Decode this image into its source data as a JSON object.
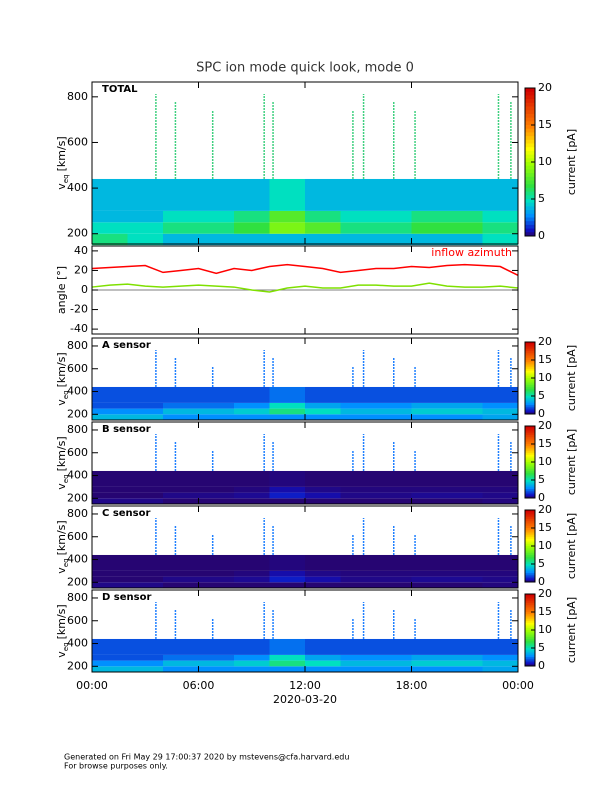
{
  "title": "SPC ion mode quick look, mode 0",
  "xlabel": "2020-03-20",
  "xlim": [
    0,
    24
  ],
  "xticks": [
    {
      "value": 0,
      "label": "00:00"
    },
    {
      "value": 6,
      "label": "06:00"
    },
    {
      "value": 12,
      "label": "12:00"
    },
    {
      "value": 18,
      "label": "18:00"
    },
    {
      "value": 24,
      "label": "00:00"
    }
  ],
  "footer": [
    "Generated on Fri May 29 17:00:37 2020 by mstevens@cfa.harvard.edu",
    "For browse purposes only."
  ],
  "chart_data": [
    {
      "type": "spectrogram",
      "label": "TOTAL",
      "ylabel": "v",
      "ylabel_sub": "eq",
      "ylabel_unit": "[km/s]",
      "ylim": [
        155,
        865
      ],
      "yticks": [
        200,
        400,
        600,
        800
      ],
      "clabel": "current [pA]",
      "clim": [
        0,
        20
      ],
      "cticks": [
        0,
        5,
        10,
        15,
        20
      ],
      "x": [
        0,
        2,
        4,
        6,
        8,
        10,
        12,
        14,
        16,
        18,
        20,
        22,
        24
      ],
      "bins": [
        150,
        200,
        250,
        300,
        440
      ],
      "values": [
        [
          6,
          5,
          4,
          4
        ],
        [
          5,
          5,
          4,
          4
        ],
        [
          4,
          6,
          5,
          4
        ],
        [
          4,
          6,
          5,
          4
        ],
        [
          4,
          7,
          6,
          4
        ],
        [
          4,
          9,
          8,
          5
        ],
        [
          4,
          8,
          6,
          4
        ],
        [
          4,
          6,
          5,
          4
        ],
        [
          4,
          6,
          5,
          4
        ],
        [
          4,
          7,
          6,
          4
        ],
        [
          4,
          7,
          6,
          4
        ],
        [
          5,
          6,
          5,
          4
        ]
      ],
      "spikes": [
        3.6,
        4.7,
        6.8,
        9.7,
        10.2,
        14.7,
        15.3,
        17.0,
        18.2,
        22.9,
        23.6
      ]
    },
    {
      "type": "line",
      "ylabel": "angle [°]",
      "ylim": [
        -45,
        45
      ],
      "yticks": [
        -40,
        -20,
        0,
        20,
        40
      ],
      "x": [
        0,
        1,
        2,
        3,
        4,
        5,
        6,
        7,
        8,
        9,
        10,
        11,
        12,
        13,
        14,
        15,
        16,
        17,
        18,
        19,
        20,
        21,
        22,
        23,
        24
      ],
      "series": [
        {
          "name": "inflow azimuth",
          "color": "#ff0000",
          "values": [
            22,
            23,
            24,
            25,
            18,
            20,
            22,
            17,
            22,
            20,
            24,
            26,
            24,
            22,
            18,
            20,
            22,
            22,
            24,
            23,
            25,
            26,
            25,
            24,
            15
          ]
        },
        {
          "color": "#7fe000",
          "values": [
            3,
            5,
            6,
            4,
            3,
            4,
            5,
            4,
            3,
            0,
            -2,
            2,
            4,
            2,
            2,
            5,
            5,
            4,
            4,
            7,
            4,
            3,
            3,
            4,
            2
          ]
        }
      ]
    },
    {
      "type": "spectrogram",
      "label": "A sensor",
      "ylabel": "v",
      "ylabel_sub": "eq",
      "ylabel_unit": "[km/s]",
      "ylim": [
        150,
        870
      ],
      "yticks": [
        200,
        400,
        600,
        800
      ],
      "clabel": "current [pA]",
      "clim": [
        0,
        20
      ],
      "cticks": [
        0,
        5,
        10,
        15,
        20
      ],
      "x": [
        0,
        2,
        4,
        6,
        8,
        10,
        12,
        14,
        16,
        18,
        20,
        22,
        24
      ],
      "bins": [
        150,
        200,
        250,
        300,
        440
      ],
      "values": [
        [
          4,
          3,
          2,
          2
        ],
        [
          4,
          3,
          2,
          2
        ],
        [
          3,
          4,
          2.5,
          2
        ],
        [
          3,
          4,
          2.5,
          2
        ],
        [
          3,
          4.5,
          3,
          2
        ],
        [
          3,
          6,
          5,
          2.5
        ],
        [
          3,
          5,
          3.5,
          2
        ],
        [
          3,
          4,
          3,
          2
        ],
        [
          3,
          4,
          3,
          2
        ],
        [
          3,
          4.5,
          3.5,
          2
        ],
        [
          3,
          4.5,
          3.5,
          2
        ],
        [
          3.5,
          4,
          3,
          2
        ]
      ],
      "spikes": [
        3.6,
        4.7,
        6.8,
        9.7,
        10.2,
        14.7,
        15.3,
        17.0,
        18.2,
        22.9,
        23.6
      ]
    },
    {
      "type": "spectrogram",
      "label": "B sensor",
      "ylabel": "v",
      "ylabel_sub": "eq",
      "ylabel_unit": "[km/s]",
      "ylim": [
        150,
        870
      ],
      "yticks": [
        200,
        400,
        600,
        800
      ],
      "clabel": "current [pA]",
      "clim": [
        0,
        20
      ],
      "cticks": [
        0,
        5,
        10,
        15,
        20
      ],
      "x": [
        0,
        2,
        4,
        6,
        8,
        10,
        12,
        14,
        16,
        18,
        20,
        22,
        24
      ],
      "bins": [
        150,
        200,
        250,
        300,
        440
      ],
      "values": [
        [
          0.5,
          0.3,
          0.3,
          0.3
        ],
        [
          0.5,
          0.3,
          0.3,
          0.3
        ],
        [
          0.3,
          0.5,
          0.3,
          0.3
        ],
        [
          0.3,
          0.5,
          0.3,
          0.3
        ],
        [
          0.3,
          0.6,
          0.4,
          0.3
        ],
        [
          0.3,
          1.2,
          0.8,
          0.4
        ],
        [
          0.3,
          0.8,
          0.5,
          0.3
        ],
        [
          0.3,
          0.5,
          0.4,
          0.3
        ],
        [
          0.3,
          0.5,
          0.4,
          0.3
        ],
        [
          0.3,
          0.6,
          0.4,
          0.3
        ],
        [
          0.3,
          0.6,
          0.4,
          0.3
        ],
        [
          0.4,
          0.5,
          0.4,
          0.3
        ]
      ],
      "spikes": [
        3.6,
        4.7,
        6.8,
        9.7,
        10.2,
        14.7,
        15.3,
        17.0,
        18.2,
        22.9,
        23.6
      ]
    },
    {
      "type": "spectrogram",
      "label": "C sensor",
      "ylabel": "v",
      "ylabel_sub": "eq",
      "ylabel_unit": "[km/s]",
      "ylim": [
        150,
        870
      ],
      "yticks": [
        200,
        400,
        600,
        800
      ],
      "clabel": "current [pA]",
      "clim": [
        0,
        20
      ],
      "cticks": [
        0,
        5,
        10,
        15,
        20
      ],
      "x": [
        0,
        2,
        4,
        6,
        8,
        10,
        12,
        14,
        16,
        18,
        20,
        22,
        24
      ],
      "bins": [
        150,
        200,
        250,
        300,
        440
      ],
      "values": [
        [
          0.5,
          0.3,
          0.3,
          0.3
        ],
        [
          0.5,
          0.3,
          0.3,
          0.3
        ],
        [
          0.3,
          0.5,
          0.3,
          0.3
        ],
        [
          0.3,
          0.5,
          0.3,
          0.3
        ],
        [
          0.3,
          0.6,
          0.4,
          0.3
        ],
        [
          0.3,
          1.2,
          0.8,
          0.4
        ],
        [
          0.3,
          0.8,
          0.5,
          0.3
        ],
        [
          0.3,
          0.5,
          0.4,
          0.3
        ],
        [
          0.3,
          0.5,
          0.4,
          0.3
        ],
        [
          0.3,
          0.6,
          0.4,
          0.3
        ],
        [
          0.3,
          0.6,
          0.4,
          0.3
        ],
        [
          0.4,
          0.5,
          0.4,
          0.3
        ]
      ],
      "spikes": [
        3.6,
        4.7,
        6.8,
        9.7,
        10.2,
        14.7,
        15.3,
        17.0,
        18.2,
        22.9,
        23.6
      ]
    },
    {
      "type": "spectrogram",
      "label": "D sensor",
      "ylabel": "v",
      "ylabel_sub": "eq",
      "ylabel_unit": "[km/s]",
      "ylim": [
        150,
        870
      ],
      "yticks": [
        200,
        400,
        600,
        800
      ],
      "clabel": "current [pA]",
      "clim": [
        0,
        20
      ],
      "cticks": [
        0,
        5,
        10,
        15,
        20
      ],
      "x": [
        0,
        2,
        4,
        6,
        8,
        10,
        12,
        14,
        16,
        18,
        20,
        22,
        24
      ],
      "bins": [
        150,
        200,
        250,
        300,
        440
      ],
      "values": [
        [
          4,
          3,
          2,
          2
        ],
        [
          4,
          3,
          2,
          2
        ],
        [
          3,
          4,
          2.5,
          2
        ],
        [
          3,
          4,
          2.5,
          2
        ],
        [
          3,
          4.5,
          3,
          2
        ],
        [
          3,
          6,
          5,
          2.5
        ],
        [
          3,
          5,
          3.5,
          2
        ],
        [
          3,
          4,
          3,
          2
        ],
        [
          3,
          4,
          3,
          2
        ],
        [
          3,
          4.5,
          3.5,
          2
        ],
        [
          3,
          4.5,
          3.5,
          2
        ],
        [
          3.5,
          4,
          3,
          2
        ]
      ],
      "spikes": [
        3.6,
        4.7,
        6.8,
        9.7,
        10.2,
        14.7,
        15.3,
        17.0,
        18.2,
        22.9,
        23.6
      ]
    }
  ]
}
